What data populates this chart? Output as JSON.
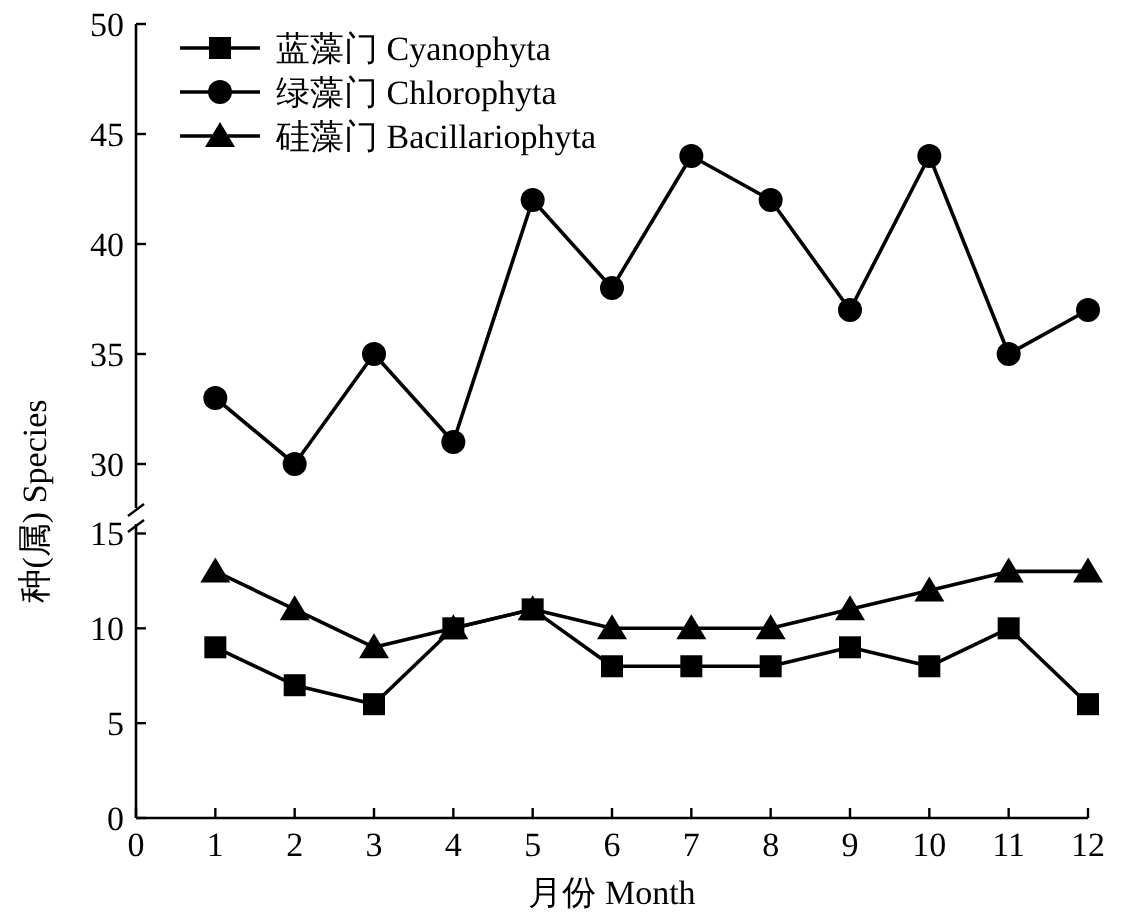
{
  "chart_data": [
    {
      "type": "line",
      "ylabel": "种(属) Species",
      "x": [
        1,
        2,
        3,
        4,
        5,
        6,
        7,
        8,
        9,
        10,
        11,
        12
      ],
      "xlim": [
        0,
        12
      ],
      "ylim": [
        28,
        50
      ],
      "yticks": [
        30,
        35,
        40,
        45,
        50
      ],
      "tick_labels": "y",
      "legend": "top left",
      "grid": false,
      "series": [
        {
          "name": "蓝藻门 Cyanophyta",
          "color": "#000000",
          "marker": "square",
          "values": [
            null,
            null,
            null,
            null,
            null,
            null,
            null,
            null,
            null,
            null,
            null,
            null
          ]
        },
        {
          "name": "绿藻门 Chlorophyta",
          "color": "#000000",
          "marker": "circle",
          "values": [
            33,
            30,
            35,
            31,
            42,
            38,
            44,
            42,
            37,
            44,
            35,
            37
          ]
        },
        {
          "name": "硅藻门 Bacillariophyta",
          "color": "#000000",
          "marker": "triangle",
          "values": [
            null,
            null,
            null,
            null,
            null,
            null,
            null,
            null,
            null,
            null,
            null,
            null
          ]
        }
      ]
    },
    {
      "type": "line",
      "xlabel": "月份 Month",
      "x": [
        1,
        2,
        3,
        4,
        5,
        6,
        7,
        8,
        9,
        10,
        11,
        12
      ],
      "xlim": [
        0,
        12
      ],
      "xticks": [
        0,
        1,
        2,
        3,
        4,
        5,
        6,
        7,
        8,
        9,
        10,
        11,
        12
      ],
      "ylim": [
        0,
        15.5
      ],
      "yticks": [
        0,
        5,
        10,
        15
      ],
      "grid": false,
      "legend": false,
      "series": [
        {
          "color": "#000000",
          "marker": "square",
          "values": [
            9,
            7,
            6,
            10,
            11,
            8,
            8,
            8,
            9,
            8,
            10,
            6
          ]
        },
        {
          "color": "#000000",
          "marker": "triangle",
          "values": [
            13,
            11,
            9,
            10,
            11,
            10,
            10,
            10,
            11,
            12,
            13,
            13
          ]
        }
      ]
    }
  ]
}
